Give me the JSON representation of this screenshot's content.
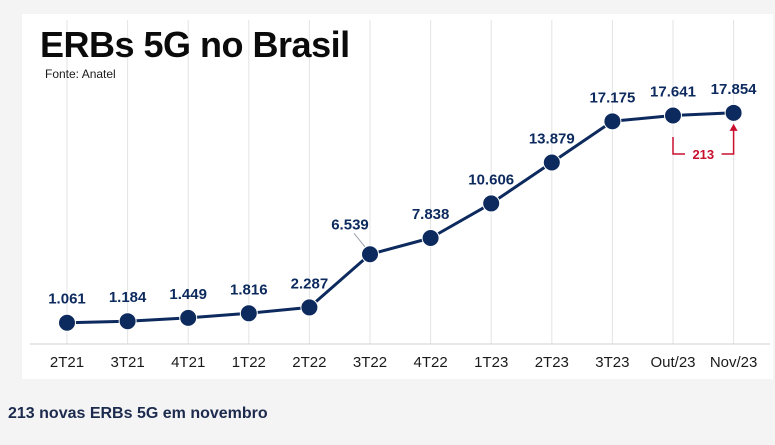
{
  "chart_data": {
    "type": "line",
    "title": "ERBs 5G no Brasil",
    "source": "Fonte: Anatel",
    "categories": [
      "2T21",
      "3T21",
      "4T21",
      "1T22",
      "2T22",
      "3T22",
      "4T22",
      "1T23",
      "2T23",
      "3T23",
      "Out/23",
      "Nov/23"
    ],
    "values": [
      1061,
      1184,
      1449,
      1816,
      2287,
      6539,
      7838,
      10606,
      13879,
      17175,
      17641,
      17854
    ],
    "value_labels": [
      "1.061",
      "1.184",
      "1.449",
      "1.816",
      "2.287",
      "6.539",
      "7.838",
      "10.606",
      "13.879",
      "17.175",
      "17.641",
      "17.854"
    ],
    "ylim": [
      0,
      20000
    ],
    "grid": "vertical",
    "line_color": "#0d2a5e",
    "label_color": "#0d2a5e",
    "annotation": {
      "text": "213",
      "from": "Out/23",
      "to": "Nov/23",
      "color": "#c8102e"
    }
  },
  "caption": "213 novas ERBs 5G em novembro"
}
